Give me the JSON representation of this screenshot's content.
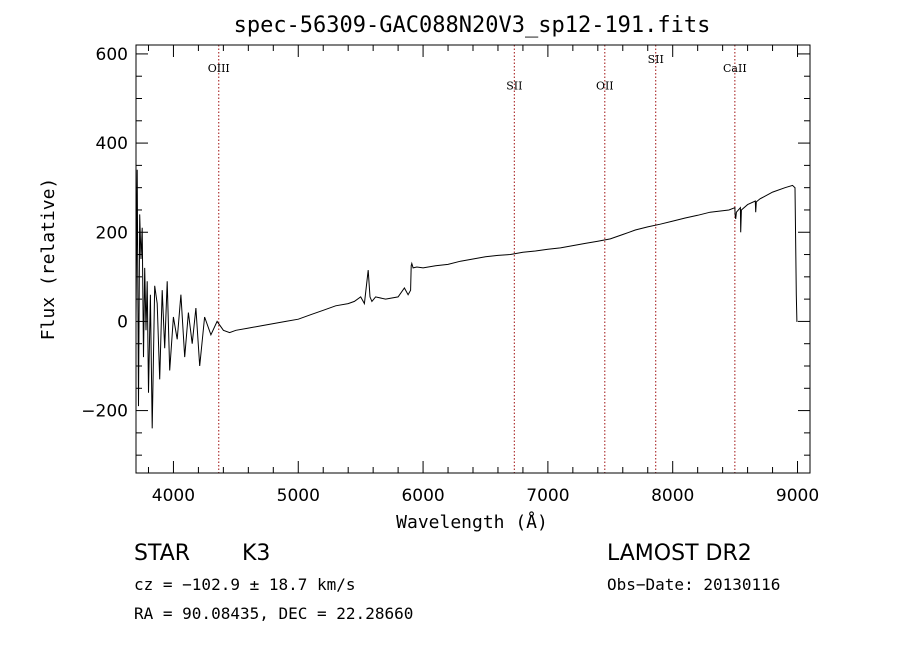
{
  "chart_data": {
    "type": "line",
    "title": "spec-56309-GAC088N20V3_sp12-191.fits",
    "xlabel": "Wavelength (Å)",
    "ylabel": "Flux (relative)",
    "xlim": [
      3700,
      9100
    ],
    "ylim": [
      -340,
      620
    ],
    "xticks": [
      4000,
      5000,
      6000,
      7000,
      8000,
      9000
    ],
    "yticks": [
      -200,
      0,
      200,
      400,
      600
    ],
    "grid": false,
    "line_color": "#000000",
    "marker_color": "#a01010",
    "series": [
      {
        "x": [
          3700,
          3710,
          3720,
          3730,
          3740,
          3750,
          3760,
          3770,
          3780,
          3790,
          3800,
          3815,
          3830,
          3850,
          3870,
          3890,
          3910,
          3930,
          3950,
          3970,
          4000,
          4030,
          4060,
          4090,
          4120,
          4150,
          4180,
          4210,
          4250,
          4300,
          4350,
          4400,
          4450,
          4500,
          4600,
          4700,
          4800,
          4900,
          5000,
          5100,
          5200,
          5300,
          5400,
          5450,
          5500,
          5530,
          5560,
          5575,
          5590,
          5620,
          5700,
          5800,
          5850,
          5880,
          5900,
          5905,
          5910,
          5920,
          5950,
          6000,
          6100,
          6200,
          6300,
          6400,
          6500,
          6600,
          6700,
          6800,
          6900,
          7000,
          7100,
          7200,
          7300,
          7400,
          7500,
          7600,
          7650,
          7700,
          7800,
          7900,
          8000,
          8100,
          8200,
          8300,
          8400,
          8450,
          8498,
          8500,
          8505,
          8510,
          8542,
          8545,
          8550,
          8600,
          8662,
          8665,
          8670,
          8700,
          8800,
          8900,
          8960,
          8980,
          8990,
          8995,
          9000
        ],
        "values": [
          0,
          340,
          -190,
          240,
          140,
          210,
          -80,
          120,
          -20,
          90,
          -160,
          60,
          -240,
          80,
          40,
          -130,
          70,
          -60,
          90,
          -110,
          10,
          -40,
          60,
          -80,
          20,
          -50,
          30,
          -100,
          10,
          -30,
          0,
          -20,
          -25,
          -20,
          -15,
          -10,
          -5,
          0,
          5,
          15,
          25,
          35,
          40,
          45,
          55,
          40,
          115,
          55,
          45,
          55,
          50,
          55,
          75,
          60,
          70,
          125,
          130,
          120,
          122,
          120,
          125,
          128,
          135,
          140,
          145,
          148,
          150,
          155,
          158,
          162,
          165,
          170,
          175,
          180,
          185,
          195,
          200,
          205,
          212,
          218,
          225,
          232,
          238,
          245,
          248,
          250,
          255,
          240,
          230,
          245,
          255,
          200,
          250,
          262,
          270,
          245,
          268,
          275,
          290,
          300,
          305,
          300,
          60,
          0,
          0
        ]
      }
    ],
    "lines": [
      {
        "name": "OIII",
        "x": 4363,
        "label_y": 560
      },
      {
        "name": "SII",
        "x": 6731,
        "label_y": 520
      },
      {
        "name": "OII",
        "x": 7456,
        "label_y": 520
      },
      {
        "name": "SII",
        "x": 7864,
        "label_y": 580
      },
      {
        "name": "CaII",
        "x": 8498,
        "label_y": 560
      }
    ]
  },
  "info": {
    "class": "STAR",
    "subclass": "K3",
    "survey": "LAMOST DR2",
    "cz": "cz = −102.9 ± 18.7 km/s",
    "obs_date": "Obs−Date: 20130116",
    "coords": "RA =  90.08435, DEC =  22.28660"
  }
}
